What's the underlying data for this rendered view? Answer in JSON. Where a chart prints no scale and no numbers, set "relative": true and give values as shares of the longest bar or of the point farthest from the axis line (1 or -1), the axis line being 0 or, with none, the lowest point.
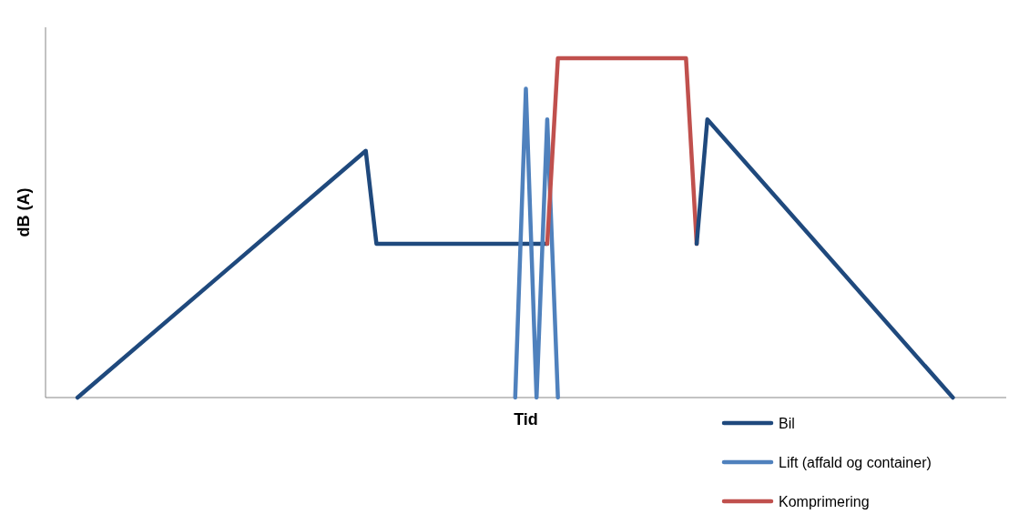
{
  "chart_data": {
    "type": "line",
    "xlabel": "Tid",
    "ylabel": "dB (A)",
    "relative": true,
    "legend": "bottom right",
    "categories": [
      null,
      null,
      null,
      null,
      null,
      null,
      null,
      null,
      null,
      null,
      null,
      null,
      null,
      null,
      null,
      null,
      null,
      null,
      null,
      null,
      null,
      null,
      null,
      null,
      null,
      null,
      null,
      null,
      null,
      null,
      null,
      null,
      null,
      null,
      null,
      null,
      null,
      null,
      null,
      null,
      null,
      null,
      null,
      null,
      null,
      null,
      null,
      null,
      null,
      null,
      null,
      null,
      null,
      null,
      null,
      null,
      null,
      null,
      null,
      null,
      null,
      null,
      null,
      null,
      null,
      null,
      null,
      null,
      null,
      null,
      null,
      null,
      null,
      null,
      null,
      null,
      null,
      null,
      null,
      null,
      null,
      null,
      null,
      null,
      null,
      null,
      null,
      null,
      null,
      null,
      null
    ],
    "series": [
      {
        "name": "Bil",
        "color": "#1f497d",
        "values": [
          null,
          null,
          null,
          0,
          null,
          null,
          null,
          null,
          null,
          null,
          null,
          null,
          null,
          null,
          null,
          null,
          null,
          null,
          null,
          null,
          null,
          null,
          null,
          null,
          null,
          null,
          null,
          null,
          null,
          null,
          0.727,
          0.453,
          null,
          null,
          null,
          null,
          null,
          null,
          null,
          null,
          null,
          null,
          null,
          null,
          null,
          null,
          null,
          0.453,
          null,
          null,
          null,
          null,
          null,
          null,
          null,
          null,
          null,
          null,
          null,
          null,
          null,
          null,
          null,
          null,
          null,
          null,
          null,
          null,
          null,
          null,
          null,
          null,
          null,
          null,
          null,
          null,
          null,
          null,
          null,
          null,
          null,
          null,
          null,
          null,
          null,
          null,
          null,
          null,
          null,
          null,
          null
        ]
      },
      {
        "name": "Lift (affald og container)",
        "color": "#4f81bd",
        "values": [
          null,
          null,
          null,
          null,
          null,
          null,
          null,
          null,
          null,
          null,
          null,
          null,
          null,
          null,
          null,
          null,
          null,
          null,
          null,
          null,
          null,
          null,
          null,
          null,
          null,
          null,
          null,
          null,
          null,
          null,
          null,
          null,
          null,
          null,
          null,
          null,
          null,
          null,
          null,
          null,
          null,
          null,
          null,
          null,
          0,
          0.91,
          0,
          0.82,
          0,
          null,
          null,
          null,
          null,
          null,
          null,
          null,
          null,
          null,
          null,
          null,
          null,
          null,
          null,
          null,
          null,
          null,
          null,
          null,
          null,
          null,
          null,
          null,
          null,
          null,
          null,
          null,
          null,
          null,
          null,
          null,
          null,
          null,
          null,
          null,
          null,
          null,
          null,
          null,
          null,
          null,
          null
        ]
      },
      {
        "name": "Komprimering",
        "color": "#c0504d",
        "values": [
          null,
          null,
          null,
          null,
          null,
          null,
          null,
          null,
          null,
          null,
          null,
          null,
          null,
          null,
          null,
          null,
          null,
          null,
          null,
          null,
          null,
          null,
          null,
          null,
          null,
          null,
          null,
          null,
          null,
          null,
          null,
          null,
          null,
          null,
          null,
          null,
          null,
          null,
          null,
          null,
          null,
          null,
          null,
          null,
          null,
          null,
          null,
          0.453,
          1,
          null,
          null,
          null,
          null,
          null,
          null,
          null,
          null,
          null,
          null,
          null,
          1,
          0.453,
          null,
          null,
          null,
          null,
          null,
          null,
          null,
          null,
          null,
          null,
          null,
          null,
          null,
          null,
          null,
          null,
          null,
          null,
          null,
          null,
          null,
          null,
          null,
          null,
          null,
          null,
          null,
          null,
          null
        ]
      },
      {
        "color": "#1f497d",
        "values": [
          null,
          null,
          null,
          null,
          null,
          null,
          null,
          null,
          null,
          null,
          null,
          null,
          null,
          null,
          null,
          null,
          null,
          null,
          null,
          null,
          null,
          null,
          null,
          null,
          null,
          null,
          null,
          null,
          null,
          null,
          null,
          null,
          null,
          null,
          null,
          null,
          null,
          null,
          null,
          null,
          null,
          null,
          null,
          null,
          null,
          null,
          null,
          null,
          null,
          null,
          null,
          null,
          null,
          null,
          null,
          null,
          null,
          null,
          null,
          null,
          null,
          0.453,
          0.82,
          null,
          null,
          null,
          null,
          null,
          null,
          null,
          null,
          null,
          null,
          null,
          null,
          null,
          null,
          null,
          null,
          null,
          null,
          null,
          null,
          null,
          null,
          0,
          null,
          null,
          null,
          null,
          null
        ]
      }
    ]
  }
}
